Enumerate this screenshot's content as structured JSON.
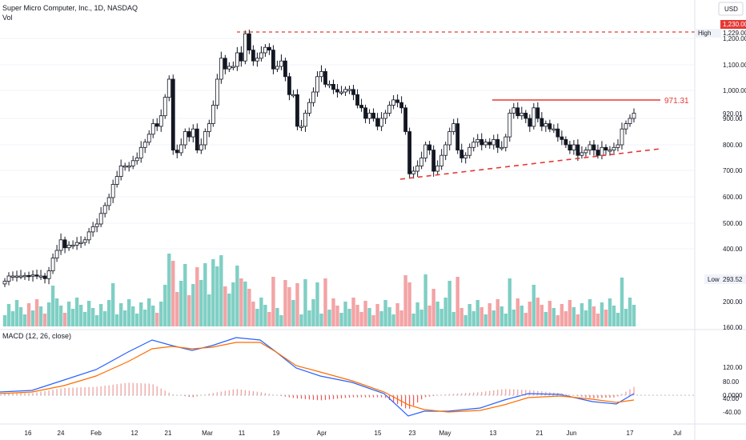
{
  "header": {
    "title": "Super Micro Computer, Inc., 1D, NASDAQ",
    "vol_label": "Vol",
    "currency": "USD"
  },
  "price_axis": {
    "ticks": [
      "1,200.00",
      "1,100.00",
      "1,000.00",
      "900.00",
      "800.00",
      "700.00",
      "600.00",
      "500.00",
      "400.00",
      "200.00",
      "160.00"
    ],
    "high_label": "High",
    "high_value": "1,229.00",
    "last_price_badge": "1,230.00",
    "current_value": "920.01",
    "low_label": "Low",
    "low_value": "293.52"
  },
  "macd": {
    "label": "MACD (12, 26, close)",
    "ticks": [
      "120.00",
      "80.00",
      "40.00",
      "0.0000",
      "-40.00"
    ]
  },
  "x_axis": {
    "labels": [
      "16",
      "24",
      "Feb",
      "12",
      "21",
      "Mar",
      "11",
      "19",
      "Apr",
      "15",
      "23",
      "May",
      "13",
      "21",
      "Jun",
      "17",
      "Jul"
    ]
  },
  "annotations": {
    "resistance_label": "971.31"
  },
  "colors": {
    "up": "#26a69a",
    "down": "#ef5350",
    "vol_up": "#7fcfc4",
    "vol_down": "#f3a3a5",
    "macd_line": "#2962ff",
    "signal_line": "#ff6d00",
    "annotation": "#e53935"
  },
  "chart_data": {
    "type": "candlestick",
    "interval": "1D",
    "candle_closes": [
      280,
      300,
      300,
      300,
      300,
      302,
      300,
      304,
      300,
      300,
      290,
      320,
      370,
      400,
      440,
      410,
      420,
      420,
      430,
      430,
      440,
      470,
      490,
      500,
      540,
      570,
      600,
      650,
      680,
      720,
      720,
      720,
      740,
      750,
      790,
      810,
      840,
      880,
      870,
      910,
      980,
      1050,
      780,
      770,
      800,
      850,
      830,
      860,
      780,
      800,
      850,
      880,
      950,
      1050,
      1130,
      1090,
      1100,
      1100,
      1150,
      1120,
      1220,
      1160,
      1120,
      1130,
      1150,
      1170,
      1160,
      1090,
      1100,
      1120,
      1060,
      990,
      990,
      870,
      870,
      920,
      960,
      1000,
      1060,
      1080,
      1030,
      1030,
      1010,
      1000,
      1000,
      1010,
      1010,
      990,
      950,
      940,
      900,
      920,
      900,
      870,
      900,
      920,
      950,
      970,
      960,
      940,
      850,
      690,
      700,
      720,
      750,
      800,
      780,
      700,
      720,
      760,
      800,
      850,
      880,
      780,
      750,
      760,
      790,
      810,
      820,
      800,
      810,
      800,
      820,
      790,
      790,
      830,
      920,
      940,
      910,
      920,
      900,
      870,
      940,
      900,
      870,
      880,
      860,
      860,
      830,
      820,
      800,
      780,
      800,
      760,
      770,
      780,
      800,
      780,
      760,
      790,
      780,
      780,
      790,
      800,
      860,
      880,
      900,
      920
    ],
    "volume": "bars per session; heights relative (Low 293.52 shown on axis)",
    "resistance_level": 971.31,
    "high": 1229.0,
    "macd_params": "12, 26, close"
  }
}
